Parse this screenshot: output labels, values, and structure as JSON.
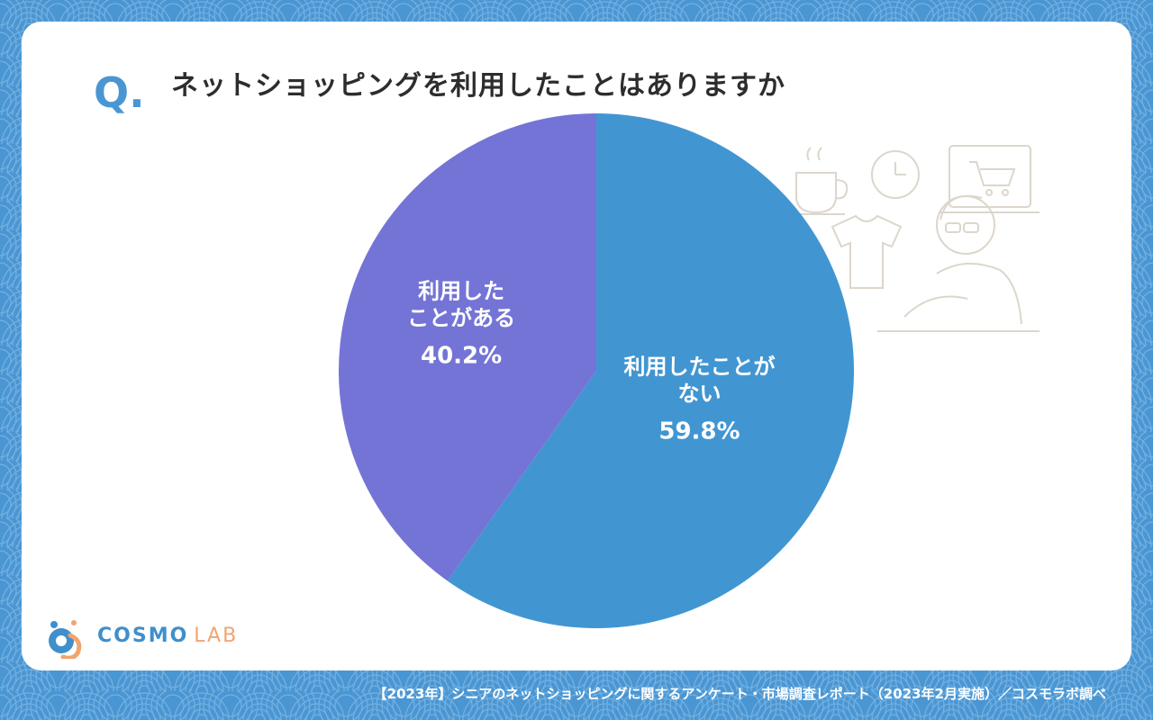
{
  "question": {
    "mark": "Q.",
    "text": "ネットショッピングを利用したことはありますか"
  },
  "chart_data": {
    "type": "pie",
    "start_angle_deg": 0,
    "direction": "clockwise",
    "slices": [
      {
        "label_lines": [
          "利用したことが",
          "ない"
        ],
        "value": 59.8,
        "value_label": "59.8%",
        "color": "#4196d2"
      },
      {
        "label_lines": [
          "利用した",
          "ことがある"
        ],
        "value": 40.2,
        "value_label": "40.2%",
        "color": "#7474d6"
      }
    ]
  },
  "logo": {
    "name": "COSMO",
    "suffix": "LAB"
  },
  "footer": {
    "text": "【2023年】シニアのネットショッピングに関するアンケート・市場調査レポート（2023年2月実施）／コスモラボ調べ"
  },
  "colors": {
    "background": "#4a96d3",
    "card": "#ffffff",
    "accent": "#4a96d3",
    "title": "#2d2d2d"
  }
}
